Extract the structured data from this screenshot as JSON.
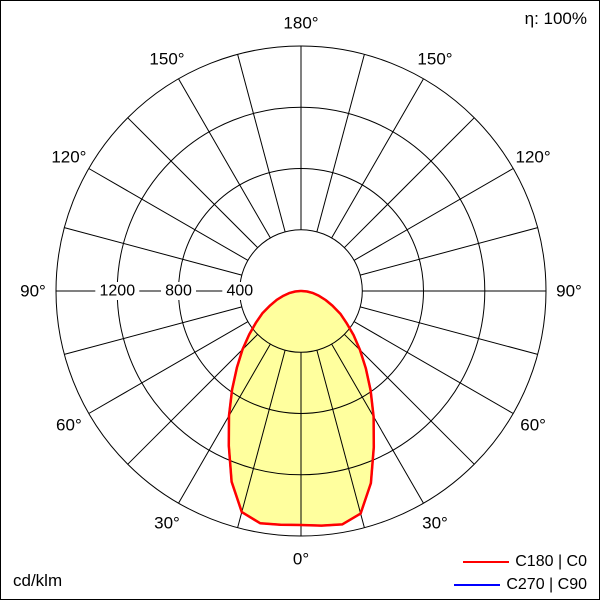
{
  "header": {
    "efficiency_label": "η: 100%"
  },
  "footer": {
    "unit_label": "cd/klm"
  },
  "legend": [
    {
      "label": "C180 | C0",
      "color": "#ff0000"
    },
    {
      "label": "C270 | C90",
      "color": "#0000ff"
    }
  ],
  "chart_data": {
    "type": "polar",
    "subtype": "photometric-intensity-distribution",
    "title": "",
    "unit": "cd/klm",
    "efficiency_pct": 100,
    "fill_color": "#ffff9e",
    "grid": {
      "angle_step_deg": 15,
      "ring_step": 400,
      "ring_values": [
        400,
        800,
        1200
      ],
      "ring_max": 1600,
      "angle_labels": [
        "0°",
        "30°",
        "60°",
        "90°",
        "120°",
        "150°",
        "180°"
      ]
    },
    "series": [
      {
        "name": "C180 | C0",
        "color": "#ff0000",
        "gamma_deg": [
          -90,
          -85,
          -80,
          -75,
          -70,
          -65,
          -60,
          -55,
          -50,
          -45,
          -40,
          -35,
          -30,
          -25,
          -20,
          -15,
          -10,
          -5,
          0,
          5,
          10,
          15,
          20,
          25,
          30,
          35,
          40,
          45,
          50,
          55,
          60,
          65,
          70,
          75,
          80,
          85,
          90
        ],
        "values": [
          5,
          38,
          78,
          118,
          168,
          222,
          292,
          358,
          442,
          540,
          650,
          785,
          940,
          1115,
          1325,
          1495,
          1540,
          1532,
          1528,
          1538,
          1548,
          1505,
          1335,
          1125,
          948,
          792,
          658,
          545,
          448,
          362,
          296,
          226,
          171,
          121,
          80,
          40,
          5
        ]
      },
      {
        "name": "C270 | C90",
        "color": "#0000ff",
        "gamma_deg": [
          -90,
          -85,
          -80,
          -75,
          -70,
          -65,
          -60,
          -55,
          -50,
          -45,
          -40,
          -35,
          -30,
          -25,
          -20,
          -15,
          -10,
          -5,
          0,
          5,
          10,
          15,
          20,
          25,
          30,
          35,
          40,
          45,
          50,
          55,
          60,
          65,
          70,
          75,
          80,
          85,
          90
        ],
        "values": [
          5,
          38,
          78,
          118,
          168,
          222,
          292,
          358,
          442,
          540,
          650,
          785,
          940,
          1115,
          1325,
          1495,
          1540,
          1532,
          1528,
          1538,
          1548,
          1505,
          1335,
          1125,
          948,
          792,
          658,
          545,
          448,
          362,
          296,
          226,
          171,
          121,
          80,
          40,
          5
        ]
      }
    ]
  }
}
